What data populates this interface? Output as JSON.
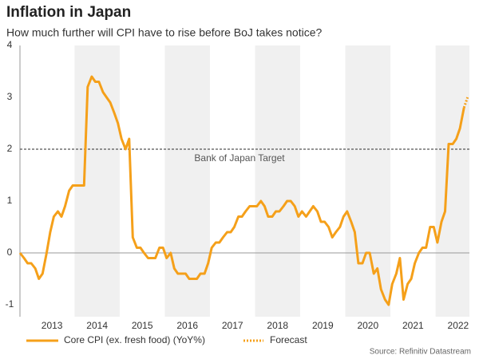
{
  "chart_data": {
    "type": "line",
    "title": "Inflation in Japan",
    "subtitle": "How much further will CPI have to rise before BoJ takes notice?",
    "source": "Source: Refinitiv Datastream",
    "xlim": [
      2012.79,
      2022.75
    ],
    "xticks": [
      {
        "value": 2013.5,
        "label": "2013"
      },
      {
        "value": 2014.5,
        "label": "2014"
      },
      {
        "value": 2015.5,
        "label": "2015"
      },
      {
        "value": 2016.5,
        "label": "2016"
      },
      {
        "value": 2017.5,
        "label": "2017"
      },
      {
        "value": 2018.5,
        "label": "2018"
      },
      {
        "value": 2019.5,
        "label": "2019"
      },
      {
        "value": 2020.5,
        "label": "2020"
      },
      {
        "value": 2021.5,
        "label": "2021"
      },
      {
        "value": 2022.5,
        "label": "2022"
      }
    ],
    "ylim": [
      -1.23,
      4
    ],
    "yticks": [
      -1,
      0,
      1,
      2,
      3,
      4
    ],
    "reference_line": {
      "value": 2,
      "label": "Bank of Japan Target"
    },
    "series": [
      {
        "name": "Core CPI (ex. fresh food) (YoY%)",
        "color": "#f5a01a",
        "line_style": "solid",
        "x": [
          2012.79,
          2012.88,
          2012.96,
          2013.04,
          2013.13,
          2013.21,
          2013.29,
          2013.38,
          2013.46,
          2013.54,
          2013.63,
          2013.71,
          2013.79,
          2013.88,
          2013.96,
          2014.04,
          2014.13,
          2014.21,
          2014.29,
          2014.38,
          2014.46,
          2014.54,
          2014.63,
          2014.71,
          2014.79,
          2014.88,
          2014.96,
          2015.04,
          2015.13,
          2015.21,
          2015.29,
          2015.38,
          2015.46,
          2015.54,
          2015.63,
          2015.71,
          2015.79,
          2015.88,
          2015.96,
          2016.04,
          2016.13,
          2016.21,
          2016.29,
          2016.38,
          2016.46,
          2016.54,
          2016.63,
          2016.71,
          2016.79,
          2016.88,
          2016.96,
          2017.04,
          2017.13,
          2017.21,
          2017.29,
          2017.38,
          2017.46,
          2017.54,
          2017.63,
          2017.71,
          2017.79,
          2017.88,
          2017.96,
          2018.04,
          2018.13,
          2018.21,
          2018.29,
          2018.38,
          2018.46,
          2018.54,
          2018.63,
          2018.71,
          2018.79,
          2018.88,
          2018.96,
          2019.04,
          2019.13,
          2019.21,
          2019.29,
          2019.38,
          2019.46,
          2019.54,
          2019.63,
          2019.71,
          2019.79,
          2019.88,
          2019.96,
          2020.04,
          2020.13,
          2020.21,
          2020.29,
          2020.38,
          2020.46,
          2020.54,
          2020.63,
          2020.71,
          2020.79,
          2020.88,
          2020.96,
          2021.04,
          2021.13,
          2021.21,
          2021.29,
          2021.38,
          2021.46,
          2021.54,
          2021.63,
          2021.71,
          2021.79,
          2021.88,
          2021.96,
          2022.04,
          2022.13,
          2022.21,
          2022.29,
          2022.38,
          2022.46,
          2022.54,
          2022.63
        ],
        "values": [
          0.0,
          -0.1,
          -0.2,
          -0.2,
          -0.3,
          -0.5,
          -0.4,
          0.0,
          0.4,
          0.7,
          0.8,
          0.7,
          0.9,
          1.2,
          1.3,
          1.3,
          1.3,
          1.3,
          3.2,
          3.4,
          3.3,
          3.3,
          3.1,
          3.0,
          2.9,
          2.7,
          2.5,
          2.2,
          2.0,
          2.2,
          0.3,
          0.1,
          0.1,
          0.0,
          -0.1,
          -0.1,
          -0.1,
          0.1,
          0.1,
          -0.1,
          0.0,
          -0.3,
          -0.4,
          -0.4,
          -0.4,
          -0.5,
          -0.5,
          -0.5,
          -0.4,
          -0.4,
          -0.2,
          0.1,
          0.2,
          0.2,
          0.3,
          0.4,
          0.4,
          0.5,
          0.7,
          0.7,
          0.8,
          0.9,
          0.9,
          0.9,
          1.0,
          0.9,
          0.7,
          0.7,
          0.8,
          0.8,
          0.9,
          1.0,
          1.0,
          0.9,
          0.7,
          0.8,
          0.7,
          0.8,
          0.9,
          0.8,
          0.6,
          0.6,
          0.5,
          0.3,
          0.4,
          0.5,
          0.7,
          0.8,
          0.6,
          0.4,
          -0.2,
          -0.2,
          0.0,
          0.0,
          -0.4,
          -0.3,
          -0.7,
          -0.9,
          -1.0,
          -0.6,
          -0.4,
          -0.1,
          -0.9,
          -0.6,
          -0.5,
          -0.2,
          0.0,
          0.1,
          0.1,
          0.5,
          0.5,
          0.2,
          0.6,
          0.8,
          2.1,
          2.1,
          2.2,
          2.4,
          2.8
        ]
      },
      {
        "name": "Forecast",
        "color": "#f5a01a",
        "line_style": "dotted",
        "x": [
          2022.63,
          2022.71
        ],
        "values": [
          2.8,
          3.0
        ]
      }
    ]
  }
}
